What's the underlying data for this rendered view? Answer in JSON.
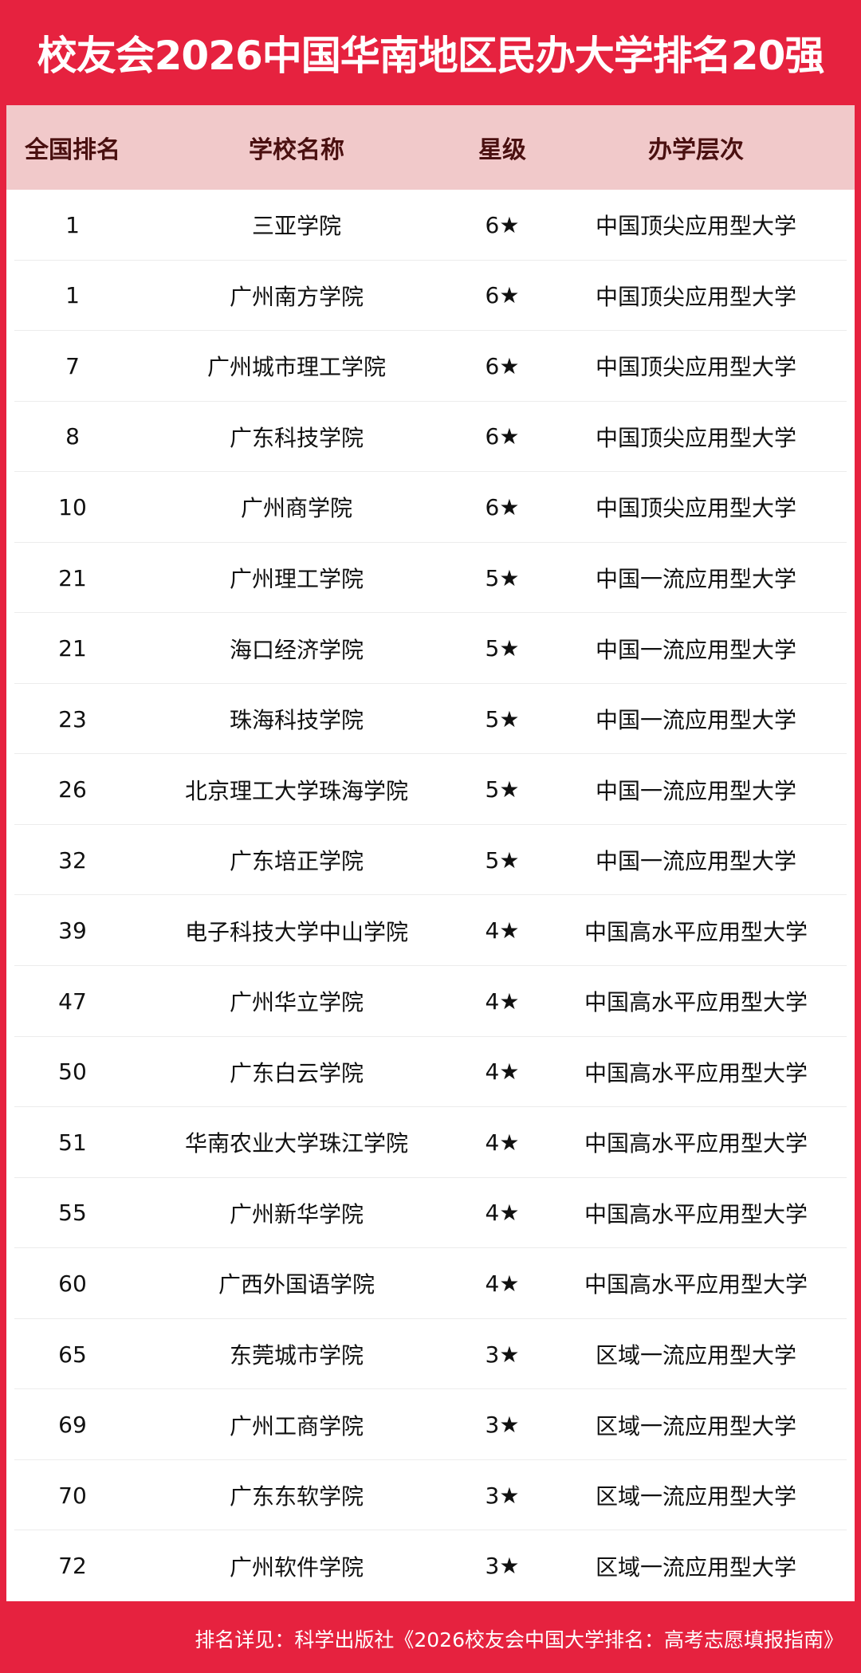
{
  "title": "校友会2026中国华南地区民办大学排名20强",
  "headers": [
    "全国排名",
    "学校名称",
    "星级",
    "办学层次"
  ],
  "rows": [
    [
      "1",
      "三亚学院",
      "6★",
      "中国顶尖应用型大学"
    ],
    [
      "1",
      "广州南方学院",
      "6★",
      "中国顶尖应用型大学"
    ],
    [
      "7",
      "广州城市理工学院",
      "6★",
      "中国顶尖应用型大学"
    ],
    [
      "8",
      "广东科技学院",
      "6★",
      "中国顶尖应用型大学"
    ],
    [
      "10",
      "广州商学院",
      "6★",
      "中国顶尖应用型大学"
    ],
    [
      "21",
      "广州理工学院",
      "5★",
      "中国一流应用型大学"
    ],
    [
      "21",
      "海口经济学院",
      "5★",
      "中国一流应用型大学"
    ],
    [
      "23",
      "珠海科技学院",
      "5★",
      "中国一流应用型大学"
    ],
    [
      "26",
      "北京理工大学珠海学院",
      "5★",
      "中国一流应用型大学"
    ],
    [
      "32",
      "广东培正学院",
      "5★",
      "中国一流应用型大学"
    ],
    [
      "39",
      "电子科技大学中山学院",
      "4★",
      "中国高水平应用型大学"
    ],
    [
      "47",
      "广州华立学院",
      "4★",
      "中国高水平应用型大学"
    ],
    [
      "50",
      "广东白云学院",
      "4★",
      "中国高水平应用型大学"
    ],
    [
      "51",
      "华南农业大学珠江学院",
      "4★",
      "中国高水平应用型大学"
    ],
    [
      "55",
      "广州新华学院",
      "4★",
      "中国高水平应用型大学"
    ],
    [
      "60",
      "广西外国语学院",
      "4★",
      "中国高水平应用型大学"
    ],
    [
      "65",
      "东莞城市学院",
      "3★",
      "区域一流应用型大学"
    ],
    [
      "69",
      "广州工商学院",
      "3★",
      "区域一流应用型大学"
    ],
    [
      "70",
      "广东东软学院",
      "3★",
      "区域一流应用型大学"
    ],
    [
      "72",
      "广州软件学院",
      "3★",
      "区域一流应用型大学"
    ]
  ],
  "footer": "排名详见：科学出版社《2026校友会中国大学排名：高考志愿填报指南》",
  "colors": {
    "brand_red": "#e6223f",
    "header_bg": "#f1c9ca",
    "header_text": "#4a1010"
  }
}
